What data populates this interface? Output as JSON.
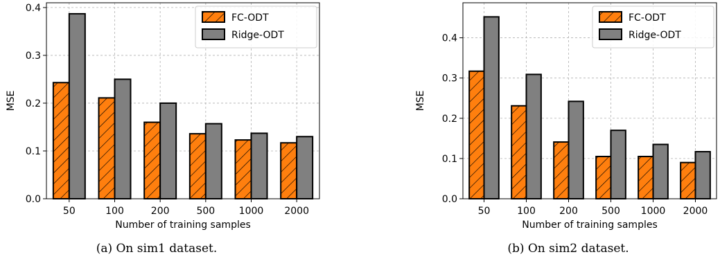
{
  "chart_data": [
    {
      "type": "bar",
      "caption": "(a) On sim1 dataset.",
      "categories": [
        "50",
        "100",
        "200",
        "500",
        "1000",
        "2000"
      ],
      "xlabel": "Number of training samples",
      "ylabel": "MSE",
      "ylim": [
        0,
        0.41
      ],
      "yticks": [
        "0.0",
        "0.1",
        "0.2",
        "0.3",
        "0.4"
      ],
      "grid": true,
      "legend_position": "top-right",
      "series": [
        {
          "name": "FC-ODT",
          "color": "#ff7f0e",
          "hatch": "diagonal",
          "values": [
            0.243,
            0.211,
            0.16,
            0.136,
            0.123,
            0.117
          ]
        },
        {
          "name": "Ridge-ODT",
          "color": "#808080",
          "hatch": "none",
          "values": [
            0.387,
            0.25,
            0.2,
            0.157,
            0.137,
            0.13
          ]
        }
      ]
    },
    {
      "type": "bar",
      "caption": "(b) On sim2 dataset.",
      "categories": [
        "50",
        "100",
        "200",
        "500",
        "1000",
        "2000"
      ],
      "xlabel": "Number of training samples",
      "ylabel": "MSE",
      "ylim": [
        0,
        0.487
      ],
      "yticks": [
        "0.0",
        "0.1",
        "0.2",
        "0.3",
        "0.4"
      ],
      "grid": true,
      "legend_position": "top-right",
      "series": [
        {
          "name": "FC-ODT",
          "color": "#ff7f0e",
          "hatch": "diagonal",
          "values": [
            0.317,
            0.231,
            0.141,
            0.105,
            0.105,
            0.09
          ]
        },
        {
          "name": "Ridge-ODT",
          "color": "#808080",
          "hatch": "none",
          "values": [
            0.452,
            0.309,
            0.242,
            0.17,
            0.135,
            0.117
          ]
        }
      ]
    }
  ]
}
